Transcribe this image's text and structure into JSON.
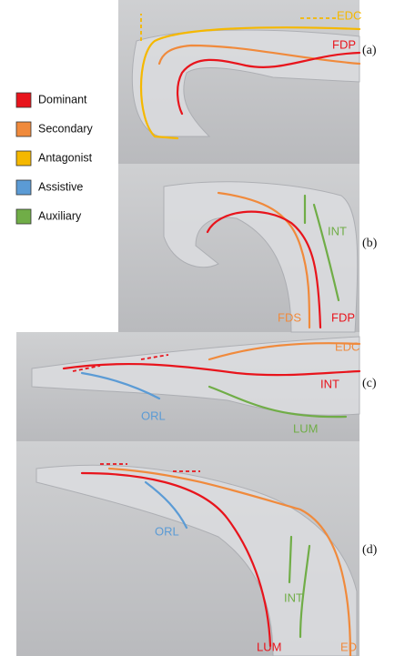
{
  "legend": [
    {
      "label": "Dominant",
      "color": "#e8141c"
    },
    {
      "label": "Secondary",
      "color": "#f08a3c"
    },
    {
      "label": "Antagonist",
      "color": "#f5b800"
    },
    {
      "label": "Assistive",
      "color": "#5b9bd5"
    },
    {
      "label": "Auxiliary",
      "color": "#70ad47"
    }
  ],
  "panels": [
    {
      "label": "(a)",
      "annotations": [
        {
          "text": "EDC",
          "color": "#f5b800"
        },
        {
          "text": "FDP",
          "color": "#e8141c"
        }
      ]
    },
    {
      "label": "(b)",
      "annotations": [
        {
          "text": "INT",
          "color": "#70ad47"
        },
        {
          "text": "FDS",
          "color": "#f08a3c"
        },
        {
          "text": "FDP",
          "color": "#e8141c"
        }
      ]
    },
    {
      "label": "(c)",
      "annotations": [
        {
          "text": "EDC",
          "color": "#f08a3c"
        },
        {
          "text": "INT",
          "color": "#e8141c"
        },
        {
          "text": "ORL",
          "color": "#5b9bd5"
        },
        {
          "text": "LUM",
          "color": "#70ad47"
        }
      ]
    },
    {
      "label": "(d)",
      "annotations": [
        {
          "text": "ORL",
          "color": "#5b9bd5"
        },
        {
          "text": "INT",
          "color": "#70ad47"
        },
        {
          "text": "LUM",
          "color": "#e8141c"
        },
        {
          "text": "ED",
          "color": "#f08a3c"
        }
      ]
    }
  ]
}
